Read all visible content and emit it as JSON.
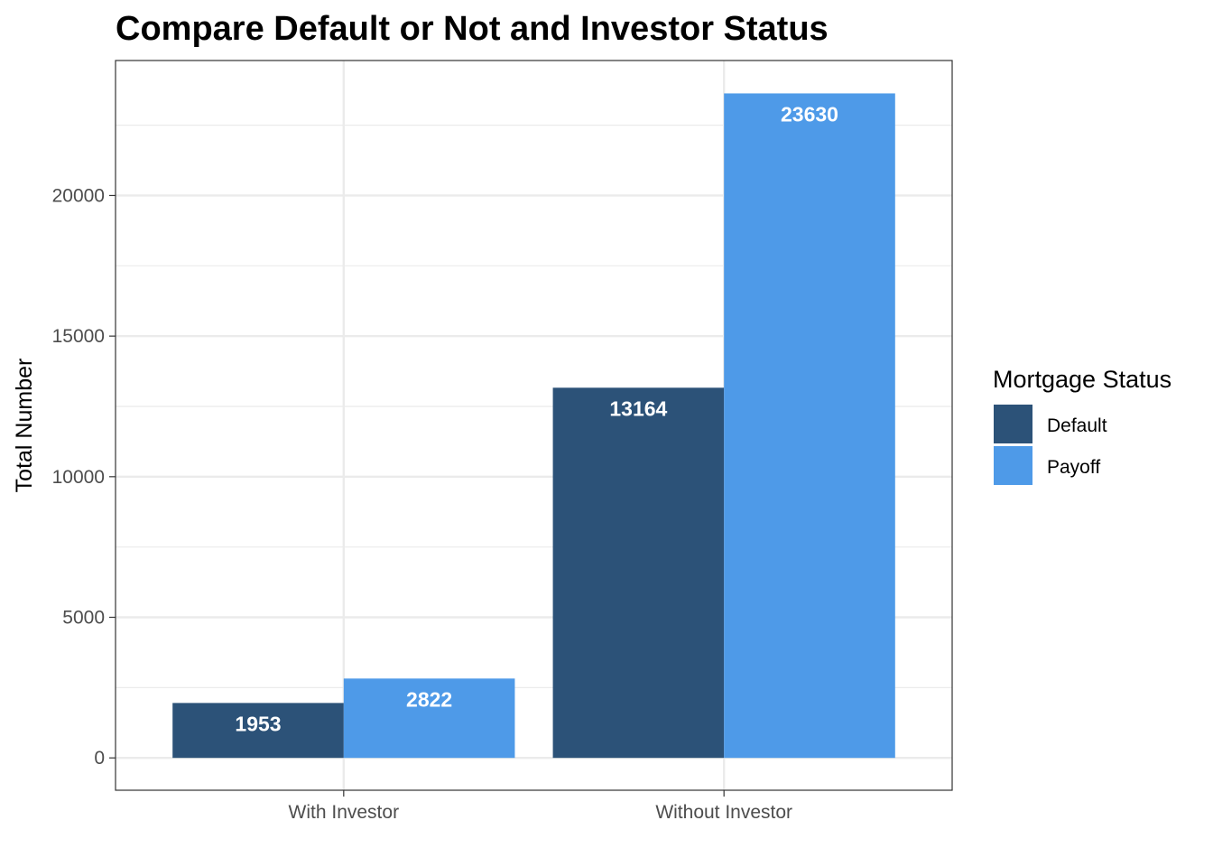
{
  "chart_data": {
    "type": "bar",
    "title": "Compare Default or Not and Investor Status",
    "xlabel": "",
    "ylabel": "Total Number",
    "categories": [
      "With Investor",
      "Without Investor"
    ],
    "series": [
      {
        "name": "Default",
        "values": [
          1953,
          13164
        ],
        "color": "#2c5278"
      },
      {
        "name": "Payoff",
        "values": [
          2822,
          23630
        ],
        "color": "#4e9ae8"
      }
    ],
    "ylim": [
      -1150,
      24800
    ],
    "yticks": [
      0,
      5000,
      10000,
      15000,
      20000
    ],
    "ytick_labels": [
      "0",
      "5000",
      "10000",
      "15000",
      "20000"
    ],
    "grid": true,
    "legend": {
      "title": "Mortgage Status",
      "position": "right"
    },
    "data_labels": true
  }
}
